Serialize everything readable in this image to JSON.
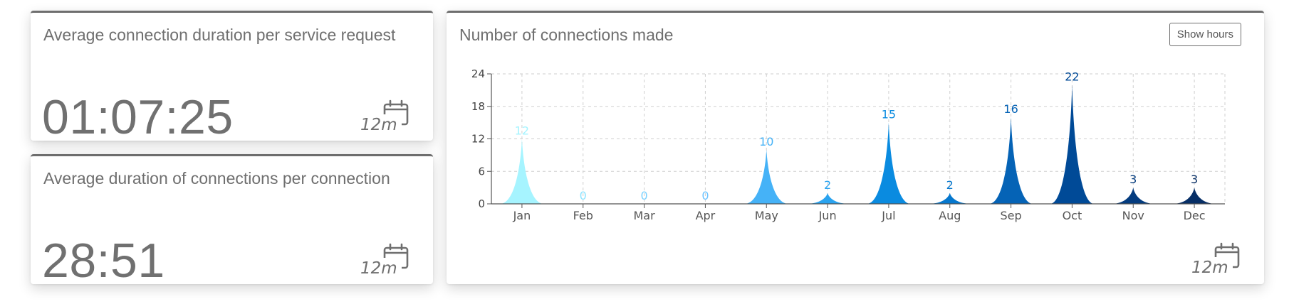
{
  "cards": {
    "avg_per_request": {
      "title": "Average connection duration per service request",
      "value": "01:07:25",
      "period": "12m"
    },
    "avg_per_connection": {
      "title": "Average duration of connections per connection",
      "value": "28:51",
      "period": "12m"
    },
    "connections_chart": {
      "title": "Number of connections made",
      "button_label": "Show hours",
      "period": "12m"
    }
  },
  "icons": [
    "calendar-icon"
  ],
  "chart_data": {
    "type": "area",
    "categories": [
      "Jan",
      "Feb",
      "Mar",
      "Apr",
      "May",
      "Jun",
      "Jul",
      "Aug",
      "Sep",
      "Oct",
      "Nov",
      "Dec"
    ],
    "values": [
      12,
      0,
      0,
      0,
      10,
      2,
      15,
      2,
      16,
      22,
      3,
      3
    ],
    "data_labels": [
      "12",
      "0",
      "0",
      "0",
      "10",
      "2",
      "15",
      "2",
      "16",
      "22",
      "3",
      "3"
    ],
    "y_ticks": [
      "0",
      "6",
      "12",
      "18",
      "24"
    ],
    "ylim": [
      0,
      24
    ],
    "grid": true,
    "colors": [
      "#a6f4ff",
      "#8fe4ff",
      "#7cd2ff",
      "#6ac2ff",
      "#45b2f7",
      "#2aa3ef",
      "#0a8be0",
      "#0577cd",
      "#0563b6",
      "#004a97",
      "#043c7f",
      "#072f66"
    ]
  }
}
